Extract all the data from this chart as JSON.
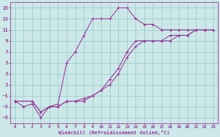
{
  "bg_color": "#cce8e8",
  "line_color": "#993399",
  "grid_color": "#99cccc",
  "xlabel": "Windchill (Refroidissement éolien,°C)",
  "xlabel_color": "#993399",
  "tick_color": "#993399",
  "ylim": [
    -6,
    16
  ],
  "xlim": [
    -0.5,
    23.5
  ],
  "yticks": [
    -5,
    -3,
    -1,
    1,
    3,
    5,
    7,
    9,
    11,
    13,
    15
  ],
  "xticks": [
    0,
    1,
    2,
    3,
    4,
    5,
    6,
    7,
    8,
    9,
    10,
    11,
    12,
    13,
    14,
    15,
    16,
    17,
    18,
    19,
    20,
    21,
    22,
    23
  ],
  "line1_x": [
    0,
    1,
    2,
    3,
    4,
    5,
    6,
    7,
    8,
    9,
    10,
    11,
    12,
    13,
    14,
    15,
    16,
    17,
    18,
    19,
    20,
    21,
    22,
    23
  ],
  "line1_y": [
    -2,
    -3,
    -2.5,
    -5,
    -3,
    -2.5,
    5,
    7,
    10,
    13,
    13,
    13,
    15,
    15,
    13,
    12,
    12,
    11,
    11,
    11,
    11,
    11,
    11,
    11
  ],
  "line2_x": [
    0,
    2,
    3,
    4,
    5,
    6,
    7,
    8,
    9,
    10,
    11,
    12,
    13,
    14,
    15,
    16,
    17,
    18,
    19,
    20,
    21,
    22,
    23
  ],
  "line2_y": [
    -2,
    -2,
    -4,
    -3,
    -3,
    -2,
    -2,
    -2,
    -1,
    0,
    2,
    4,
    7,
    9,
    9,
    9,
    9,
    10,
    10,
    10,
    11,
    11,
    11
  ],
  "line3_x": [
    0,
    2,
    3,
    4,
    5,
    6,
    7,
    8,
    9,
    10,
    11,
    12,
    13,
    14,
    15,
    16,
    17,
    18,
    19,
    20,
    21,
    22,
    23
  ],
  "line3_y": [
    -2,
    -2,
    -4,
    -3,
    -3,
    -2,
    -2,
    -1.5,
    -1,
    0,
    1,
    3,
    6,
    8,
    9,
    9,
    9,
    9,
    10,
    10,
    11,
    11,
    11
  ]
}
